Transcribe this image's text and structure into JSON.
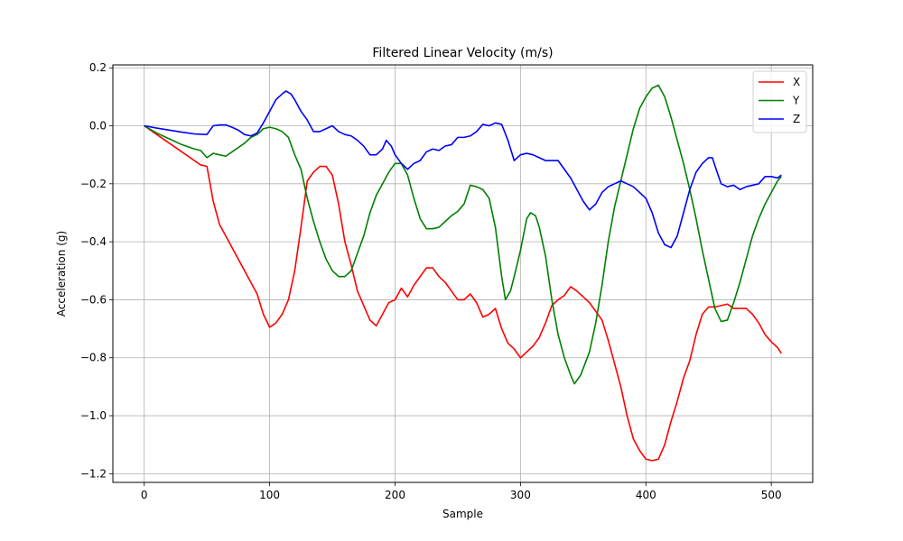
{
  "chart_data": {
    "type": "line",
    "title": "Filtered Linear Velocity (m/s)",
    "xlabel": "Sample",
    "ylabel": "Acceleration (g)",
    "xlim": [
      -25,
      533
    ],
    "ylim": [
      -1.23,
      0.21
    ],
    "xticks": [
      0,
      100,
      200,
      300,
      400,
      500
    ],
    "xtick_labels": [
      "0",
      "100",
      "200",
      "300",
      "400",
      "500"
    ],
    "yticks": [
      0.2,
      0.0,
      -0.2,
      -0.4,
      -0.6,
      -0.8,
      -1.0,
      -1.2
    ],
    "ytick_labels": [
      "0.2",
      "0.0",
      "−0.2",
      "−0.4",
      "−0.6",
      "−0.8",
      "−1.0",
      "−1.2"
    ],
    "grid": true,
    "legend_position": "top-right",
    "series": [
      {
        "name": "X",
        "color": "#ff0000",
        "points": [
          [
            0,
            0
          ],
          [
            10,
            -0.03
          ],
          [
            20,
            -0.06
          ],
          [
            30,
            -0.09
          ],
          [
            40,
            -0.12
          ],
          [
            45,
            -0.135
          ],
          [
            50,
            -0.14
          ],
          [
            55,
            -0.26
          ],
          [
            60,
            -0.34
          ],
          [
            70,
            -0.42
          ],
          [
            80,
            -0.5
          ],
          [
            90,
            -0.58
          ],
          [
            95,
            -0.65
          ],
          [
            100,
            -0.695
          ],
          [
            105,
            -0.68
          ],
          [
            110,
            -0.65
          ],
          [
            115,
            -0.6
          ],
          [
            120,
            -0.5
          ],
          [
            125,
            -0.35
          ],
          [
            130,
            -0.19
          ],
          [
            135,
            -0.16
          ],
          [
            140,
            -0.14
          ],
          [
            145,
            -0.14
          ],
          [
            150,
            -0.17
          ],
          [
            155,
            -0.27
          ],
          [
            160,
            -0.4
          ],
          [
            165,
            -0.48
          ],
          [
            170,
            -0.57
          ],
          [
            175,
            -0.62
          ],
          [
            180,
            -0.67
          ],
          [
            185,
            -0.69
          ],
          [
            190,
            -0.65
          ],
          [
            195,
            -0.61
          ],
          [
            200,
            -0.6
          ],
          [
            205,
            -0.56
          ],
          [
            210,
            -0.59
          ],
          [
            215,
            -0.55
          ],
          [
            220,
            -0.52
          ],
          [
            225,
            -0.49
          ],
          [
            230,
            -0.49
          ],
          [
            235,
            -0.52
          ],
          [
            240,
            -0.54
          ],
          [
            245,
            -0.57
          ],
          [
            250,
            -0.6
          ],
          [
            255,
            -0.6
          ],
          [
            260,
            -0.58
          ],
          [
            265,
            -0.61
          ],
          [
            270,
            -0.66
          ],
          [
            275,
            -0.65
          ],
          [
            280,
            -0.63
          ],
          [
            285,
            -0.7
          ],
          [
            290,
            -0.75
          ],
          [
            295,
            -0.77
          ],
          [
            300,
            -0.8
          ],
          [
            305,
            -0.78
          ],
          [
            310,
            -0.76
          ],
          [
            315,
            -0.73
          ],
          [
            320,
            -0.68
          ],
          [
            325,
            -0.62
          ],
          [
            330,
            -0.6
          ],
          [
            335,
            -0.585
          ],
          [
            340,
            -0.555
          ],
          [
            345,
            -0.57
          ],
          [
            350,
            -0.59
          ],
          [
            355,
            -0.61
          ],
          [
            360,
            -0.64
          ],
          [
            365,
            -0.67
          ],
          [
            370,
            -0.74
          ],
          [
            375,
            -0.82
          ],
          [
            380,
            -0.9
          ],
          [
            385,
            -1.0
          ],
          [
            390,
            -1.08
          ],
          [
            395,
            -1.12
          ],
          [
            400,
            -1.15
          ],
          [
            405,
            -1.155
          ],
          [
            410,
            -1.15
          ],
          [
            415,
            -1.1
          ],
          [
            420,
            -1.02
          ],
          [
            425,
            -0.95
          ],
          [
            430,
            -0.87
          ],
          [
            435,
            -0.81
          ],
          [
            440,
            -0.72
          ],
          [
            445,
            -0.65
          ],
          [
            450,
            -0.625
          ],
          [
            455,
            -0.625
          ],
          [
            460,
            -0.62
          ],
          [
            465,
            -0.615
          ],
          [
            470,
            -0.63
          ],
          [
            475,
            -0.63
          ],
          [
            480,
            -0.63
          ],
          [
            485,
            -0.65
          ],
          [
            490,
            -0.68
          ],
          [
            495,
            -0.72
          ],
          [
            500,
            -0.745
          ],
          [
            505,
            -0.765
          ],
          [
            508,
            -0.785
          ]
        ]
      },
      {
        "name": "Y",
        "color": "#008000",
        "points": [
          [
            0,
            0
          ],
          [
            10,
            -0.025
          ],
          [
            20,
            -0.045
          ],
          [
            30,
            -0.065
          ],
          [
            40,
            -0.08
          ],
          [
            45,
            -0.085
          ],
          [
            50,
            -0.11
          ],
          [
            55,
            -0.095
          ],
          [
            60,
            -0.1
          ],
          [
            65,
            -0.105
          ],
          [
            70,
            -0.09
          ],
          [
            75,
            -0.075
          ],
          [
            80,
            -0.06
          ],
          [
            85,
            -0.04
          ],
          [
            90,
            -0.03
          ],
          [
            95,
            -0.01
          ],
          [
            100,
            -0.005
          ],
          [
            105,
            -0.01
          ],
          [
            110,
            -0.02
          ],
          [
            115,
            -0.04
          ],
          [
            120,
            -0.1
          ],
          [
            125,
            -0.15
          ],
          [
            130,
            -0.25
          ],
          [
            135,
            -0.33
          ],
          [
            140,
            -0.4
          ],
          [
            145,
            -0.46
          ],
          [
            150,
            -0.5
          ],
          [
            155,
            -0.52
          ],
          [
            160,
            -0.52
          ],
          [
            165,
            -0.5
          ],
          [
            170,
            -0.44
          ],
          [
            175,
            -0.38
          ],
          [
            180,
            -0.3
          ],
          [
            185,
            -0.24
          ],
          [
            190,
            -0.2
          ],
          [
            195,
            -0.16
          ],
          [
            200,
            -0.13
          ],
          [
            205,
            -0.13
          ],
          [
            210,
            -0.17
          ],
          [
            215,
            -0.25
          ],
          [
            220,
            -0.32
          ],
          [
            225,
            -0.355
          ],
          [
            230,
            -0.355
          ],
          [
            235,
            -0.35
          ],
          [
            240,
            -0.33
          ],
          [
            245,
            -0.31
          ],
          [
            250,
            -0.295
          ],
          [
            255,
            -0.27
          ],
          [
            260,
            -0.205
          ],
          [
            265,
            -0.21
          ],
          [
            270,
            -0.22
          ],
          [
            275,
            -0.25
          ],
          [
            280,
            -0.35
          ],
          [
            285,
            -0.52
          ],
          [
            288,
            -0.6
          ],
          [
            292,
            -0.57
          ],
          [
            295,
            -0.52
          ],
          [
            300,
            -0.43
          ],
          [
            305,
            -0.32
          ],
          [
            308,
            -0.3
          ],
          [
            312,
            -0.31
          ],
          [
            315,
            -0.35
          ],
          [
            320,
            -0.45
          ],
          [
            325,
            -0.6
          ],
          [
            330,
            -0.72
          ],
          [
            335,
            -0.8
          ],
          [
            340,
            -0.86
          ],
          [
            343,
            -0.89
          ],
          [
            348,
            -0.86
          ],
          [
            355,
            -0.78
          ],
          [
            360,
            -0.68
          ],
          [
            365,
            -0.55
          ],
          [
            370,
            -0.4
          ],
          [
            375,
            -0.28
          ],
          [
            380,
            -0.19
          ],
          [
            385,
            -0.1
          ],
          [
            390,
            -0.01
          ],
          [
            395,
            0.06
          ],
          [
            400,
            0.1
          ],
          [
            405,
            0.13
          ],
          [
            410,
            0.14
          ],
          [
            415,
            0.1
          ],
          [
            420,
            0.03
          ],
          [
            425,
            -0.05
          ],
          [
            430,
            -0.13
          ],
          [
            435,
            -0.22
          ],
          [
            440,
            -0.32
          ],
          [
            445,
            -0.43
          ],
          [
            450,
            -0.53
          ],
          [
            455,
            -0.63
          ],
          [
            460,
            -0.675
          ],
          [
            465,
            -0.67
          ],
          [
            470,
            -0.61
          ],
          [
            475,
            -0.54
          ],
          [
            480,
            -0.46
          ],
          [
            485,
            -0.38
          ],
          [
            490,
            -0.32
          ],
          [
            495,
            -0.27
          ],
          [
            500,
            -0.23
          ],
          [
            505,
            -0.19
          ],
          [
            508,
            -0.175
          ]
        ]
      },
      {
        "name": "Z",
        "color": "#0000ff",
        "points": [
          [
            0,
            0
          ],
          [
            10,
            -0.008
          ],
          [
            20,
            -0.015
          ],
          [
            30,
            -0.022
          ],
          [
            40,
            -0.028
          ],
          [
            50,
            -0.03
          ],
          [
            55,
            0.0
          ],
          [
            60,
            0.003
          ],
          [
            65,
            0.003
          ],
          [
            70,
            -0.005
          ],
          [
            75,
            -0.015
          ],
          [
            80,
            -0.03
          ],
          [
            85,
            -0.035
          ],
          [
            90,
            -0.025
          ],
          [
            95,
            0.01
          ],
          [
            100,
            0.05
          ],
          [
            105,
            0.09
          ],
          [
            110,
            0.11
          ],
          [
            113,
            0.12
          ],
          [
            117,
            0.11
          ],
          [
            120,
            0.09
          ],
          [
            125,
            0.05
          ],
          [
            130,
            0.02
          ],
          [
            135,
            -0.02
          ],
          [
            140,
            -0.02
          ],
          [
            145,
            -0.01
          ],
          [
            150,
            0.0
          ],
          [
            155,
            -0.02
          ],
          [
            160,
            -0.03
          ],
          [
            165,
            -0.035
          ],
          [
            170,
            -0.05
          ],
          [
            175,
            -0.07
          ],
          [
            180,
            -0.1
          ],
          [
            185,
            -0.1
          ],
          [
            190,
            -0.08
          ],
          [
            193,
            -0.05
          ],
          [
            197,
            -0.07
          ],
          [
            200,
            -0.1
          ],
          [
            205,
            -0.13
          ],
          [
            210,
            -0.15
          ],
          [
            215,
            -0.13
          ],
          [
            220,
            -0.12
          ],
          [
            225,
            -0.09
          ],
          [
            230,
            -0.08
          ],
          [
            235,
            -0.085
          ],
          [
            240,
            -0.07
          ],
          [
            245,
            -0.065
          ],
          [
            250,
            -0.04
          ],
          [
            255,
            -0.04
          ],
          [
            260,
            -0.035
          ],
          [
            265,
            -0.02
          ],
          [
            270,
            0.005
          ],
          [
            275,
            0.0
          ],
          [
            280,
            0.01
          ],
          [
            285,
            0.005
          ],
          [
            290,
            -0.05
          ],
          [
            295,
            -0.12
          ],
          [
            300,
            -0.1
          ],
          [
            305,
            -0.095
          ],
          [
            310,
            -0.1
          ],
          [
            315,
            -0.11
          ],
          [
            320,
            -0.12
          ],
          [
            325,
            -0.12
          ],
          [
            330,
            -0.12
          ],
          [
            335,
            -0.15
          ],
          [
            340,
            -0.18
          ],
          [
            345,
            -0.22
          ],
          [
            350,
            -0.26
          ],
          [
            355,
            -0.29
          ],
          [
            360,
            -0.27
          ],
          [
            365,
            -0.23
          ],
          [
            370,
            -0.21
          ],
          [
            375,
            -0.2
          ],
          [
            380,
            -0.19
          ],
          [
            385,
            -0.2
          ],
          [
            390,
            -0.21
          ],
          [
            395,
            -0.23
          ],
          [
            400,
            -0.25
          ],
          [
            405,
            -0.3
          ],
          [
            410,
            -0.37
          ],
          [
            415,
            -0.41
          ],
          [
            420,
            -0.42
          ],
          [
            425,
            -0.38
          ],
          [
            430,
            -0.3
          ],
          [
            435,
            -0.22
          ],
          [
            440,
            -0.16
          ],
          [
            445,
            -0.13
          ],
          [
            450,
            -0.11
          ],
          [
            453,
            -0.11
          ],
          [
            456,
            -0.15
          ],
          [
            460,
            -0.2
          ],
          [
            465,
            -0.21
          ],
          [
            470,
            -0.205
          ],
          [
            475,
            -0.22
          ],
          [
            480,
            -0.21
          ],
          [
            485,
            -0.205
          ],
          [
            490,
            -0.2
          ],
          [
            495,
            -0.175
          ],
          [
            500,
            -0.175
          ],
          [
            505,
            -0.18
          ],
          [
            508,
            -0.17
          ]
        ]
      }
    ]
  }
}
